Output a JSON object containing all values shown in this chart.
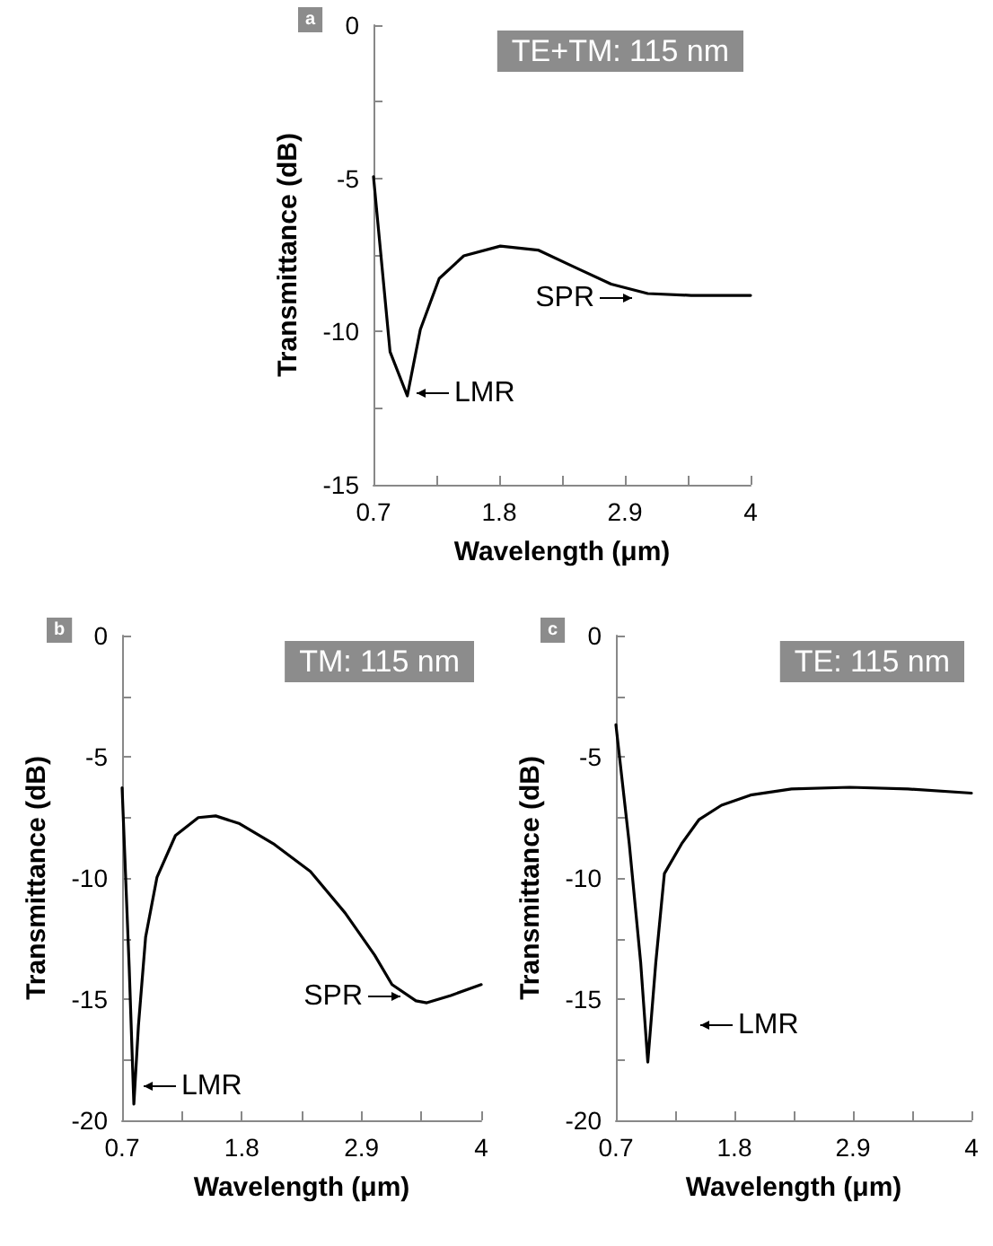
{
  "chart_data": [
    {
      "type": "line",
      "title": "TE+TM: 115 nm",
      "xlabel": "Wavelength (μm)",
      "ylabel": "Transmittance (dB)",
      "x": [
        0.7,
        0.845,
        0.996,
        1.11,
        1.275,
        1.49,
        1.81,
        2.14,
        2.46,
        2.78,
        3.1,
        3.48,
        4
      ],
      "series": [
        {
          "color": "#000000",
          "values": [
            -4.95,
            -10.66,
            -12.1,
            -9.93,
            -8.27,
            -7.53,
            -7.21,
            -7.34,
            -7.9,
            -8.45,
            -8.76,
            -8.82,
            -8.82
          ]
        }
      ],
      "xlim": [
        0.7,
        4
      ],
      "xticks": [
        0.7,
        {
          "value": 1.25,
          "label": null
        },
        1.8,
        {
          "value": 2.35,
          "label": null
        },
        2.9,
        {
          "value": 3.45,
          "label": null
        },
        4
      ],
      "ylim": [
        -15,
        0
      ],
      "yticks": [
        -15,
        {
          "value": -12.5,
          "label": null
        },
        -10,
        {
          "value": -7.5,
          "label": null
        },
        -5,
        {
          "value": -2.5,
          "label": null
        },
        0
      ],
      "grid": false,
      "marker": "none",
      "line_style": "solid",
      "annotations": [
        "a",
        "LMR",
        "SPR"
      ]
    },
    {
      "type": "line",
      "title": "TM: 115 nm",
      "xlabel": "Wavelength (μm)",
      "ylabel": "Transmittance (dB)",
      "x": [
        0.7,
        0.765,
        0.808,
        0.85,
        0.916,
        1.02,
        1.19,
        1.4,
        1.56,
        1.78,
        2.1,
        2.43,
        2.75,
        3.02,
        3.18,
        3.4,
        3.5,
        3.72,
        4
      ],
      "series": [
        {
          "color": "#000000",
          "values": [
            -6.28,
            -13.67,
            -19.33,
            -16.1,
            -12.44,
            -9.98,
            -8.25,
            -7.51,
            -7.44,
            -7.76,
            -8.62,
            -9.73,
            -11.45,
            -13.18,
            -14.4,
            -15.07,
            -15.15,
            -14.85,
            -14.4
          ]
        }
      ],
      "xlim": [
        0.7,
        4
      ],
      "xticks": [
        0.7,
        {
          "value": 1.25,
          "label": null
        },
        1.8,
        {
          "value": 2.35,
          "label": null
        },
        2.9,
        {
          "value": 3.45,
          "label": null
        },
        4
      ],
      "ylim": [
        -20,
        0
      ],
      "yticks": [
        -20,
        {
          "value": -17.5,
          "label": null
        },
        -15,
        {
          "value": -12.5,
          "label": null
        },
        -10,
        {
          "value": -7.5,
          "label": null
        },
        -5,
        {
          "value": -2.5,
          "label": null
        },
        0
      ],
      "grid": false,
      "marker": "none",
      "line_style": "solid",
      "annotations": [
        "b",
        "LMR",
        "SPR"
      ]
    },
    {
      "type": "line",
      "title": "TE: 115 nm",
      "xlabel": "Wavelength (μm)",
      "ylabel": "Transmittance (dB)",
      "x": [
        0.7,
        0.824,
        0.93,
        0.996,
        1.07,
        1.15,
        1.31,
        1.47,
        1.68,
        1.95,
        2.33,
        2.87,
        3.41,
        4
      ],
      "series": [
        {
          "color": "#000000",
          "values": [
            -3.68,
            -8.59,
            -13.5,
            -17.6,
            -13.5,
            -9.82,
            -8.59,
            -7.6,
            -7.0,
            -6.58,
            -6.33,
            -6.26,
            -6.33,
            -6.5
          ]
        }
      ],
      "xlim": [
        0.7,
        4
      ],
      "xticks": [
        0.7,
        {
          "value": 1.25,
          "label": null
        },
        1.8,
        {
          "value": 2.35,
          "label": null
        },
        2.9,
        {
          "value": 3.45,
          "label": null
        },
        4
      ],
      "ylim": [
        -20,
        0
      ],
      "yticks": [
        -20,
        {
          "value": -17.5,
          "label": null
        },
        -15,
        {
          "value": -12.5,
          "label": null
        },
        -10,
        {
          "value": -7.5,
          "label": null
        },
        -5,
        {
          "value": -2.5,
          "label": null
        },
        0
      ],
      "grid": false,
      "marker": "none",
      "line_style": "solid",
      "annotations": [
        "c",
        "LMR"
      ]
    }
  ]
}
